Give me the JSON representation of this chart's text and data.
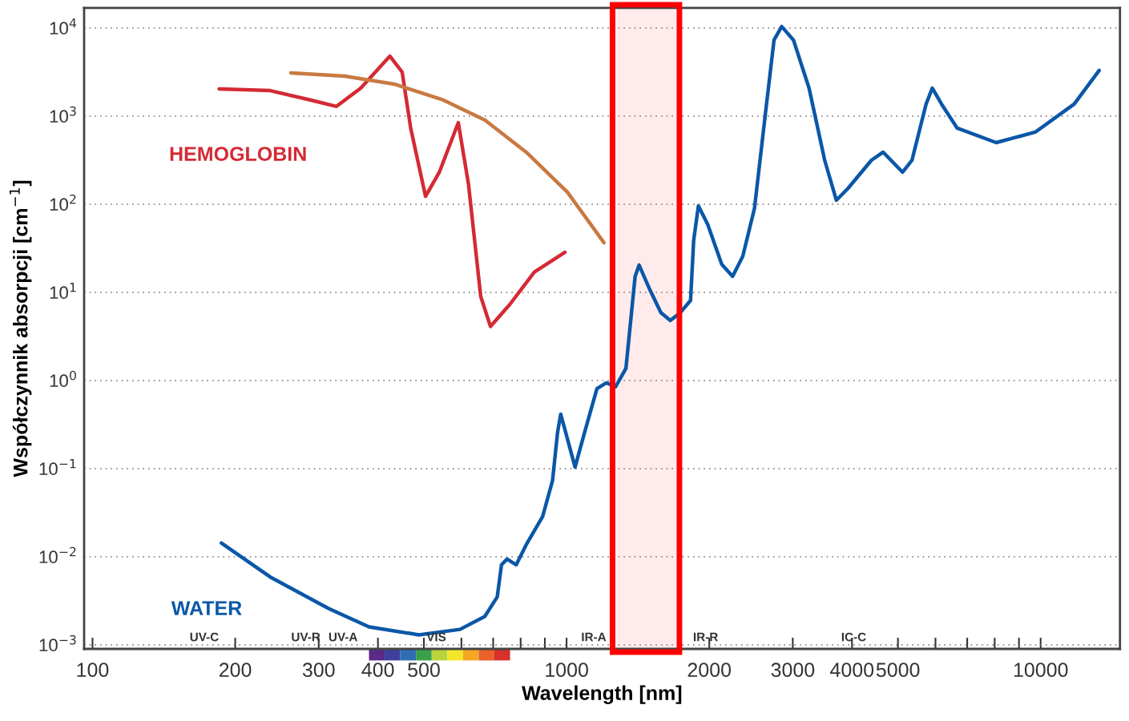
{
  "chart_data": {
    "type": "line",
    "xlabel": "Wavelength [nm]",
    "ylabel": "Współczynnik absorpcji [cm$^{−1}$]",
    "log": "xy",
    "grid": "y",
    "legend": false,
    "marker": "none",
    "line_style": "solid",
    "xlim": [
      96,
      14700
    ],
    "ylim": [
      0.0009,
      16900
    ],
    "xticks": [
      100,
      200,
      300,
      400,
      500,
      {
        "value": 600,
        "label": null
      },
      {
        "value": 700,
        "label": null
      },
      {
        "value": 800,
        "label": null
      },
      {
        "value": 900,
        "label": null
      },
      1000,
      2000,
      3000,
      4000,
      5000,
      {
        "value": 6000,
        "label": null
      },
      {
        "value": 7000,
        "label": null
      },
      {
        "value": 8000,
        "label": null
      },
      {
        "value": 9000,
        "label": null
      },
      10000
    ],
    "yticks": [
      {
        "value": 0.001,
        "label": "10$^{−3}$"
      },
      {
        "value": 0.01,
        "label": "10$^{−2}$"
      },
      {
        "value": 0.1,
        "label": "10$^{−1}$"
      },
      {
        "value": 1,
        "label": "10$^{0}$"
      },
      {
        "value": 10,
        "label": "10$^{1}$"
      },
      {
        "value": 100,
        "label": "10$^{2}$"
      },
      {
        "value": 1000,
        "label": "10$^{3}$"
      },
      {
        "value": 10000,
        "label": "10$^{4}$"
      }
    ],
    "series": [
      {
        "name": "HEMOGLOBIN",
        "color": "#d42a34",
        "x": [
          185,
          237,
          289,
          327,
          368,
          424,
          450,
          469,
          504,
          539,
          591,
          621,
          659,
          691,
          759,
          855,
          992
        ],
        "values": [
          2040,
          1950,
          1520,
          1290,
          2080,
          4800,
          3160,
          730,
          123,
          231,
          845,
          169,
          9.0,
          4.1,
          7.3,
          17,
          28.5
        ]
      },
      {
        "color": "#c87941",
        "x": [
          262,
          340,
          433,
          550,
          673,
          822,
          1004,
          1199
        ],
        "values": [
          3100,
          2850,
          2310,
          1520,
          900,
          390,
          137,
          36.7
        ]
      },
      {
        "name": "WATER",
        "color": "#0a57a8",
        "x": [
          187,
          237,
          314,
          383,
          488,
          596,
          672,
          714,
          729,
          749,
          783,
          822,
          890,
          934,
          957,
          972,
          996,
          1042,
          1091,
          1159,
          1213,
          1269,
          1334,
          1395,
          1422,
          1494,
          1581,
          1655,
          1738,
          1826,
          1854,
          1897,
          1985,
          2125,
          2240,
          2353,
          2491,
          2617,
          2739,
          2843,
          3010,
          3247,
          3503,
          3707,
          3925,
          4396,
          4654,
          4833,
          5115,
          5353,
          5732,
          5907,
          6180,
          6668,
          8058,
          9739,
          11770,
          13290
        ],
        "values": [
          0.0143,
          0.0059,
          0.0026,
          0.0016,
          0.0013,
          0.0015,
          0.0021,
          0.0035,
          0.0081,
          0.0094,
          0.0081,
          0.0137,
          0.0285,
          0.073,
          0.256,
          0.415,
          0.256,
          0.104,
          0.256,
          0.81,
          0.94,
          0.85,
          1.37,
          15.2,
          20.4,
          11.1,
          5.9,
          4.8,
          5.9,
          8.1,
          39,
          96,
          59,
          20.8,
          15.2,
          25.6,
          90,
          900,
          7310,
          10400,
          7310,
          2080,
          316,
          111,
          152,
          316,
          390,
          316,
          231,
          316,
          1370,
          2080,
          1370,
          731,
          501,
          658,
          1370,
          3300
        ]
      }
    ],
    "bands": [
      {
        "axis": "x",
        "from": 1250,
        "to": 1730,
        "color": "#ff0000"
      }
    ],
    "annotations": [
      "UV-C",
      "UV-R",
      "UV-A",
      "VIS",
      "IR-A",
      "IR-R",
      "IC-C"
    ]
  }
}
